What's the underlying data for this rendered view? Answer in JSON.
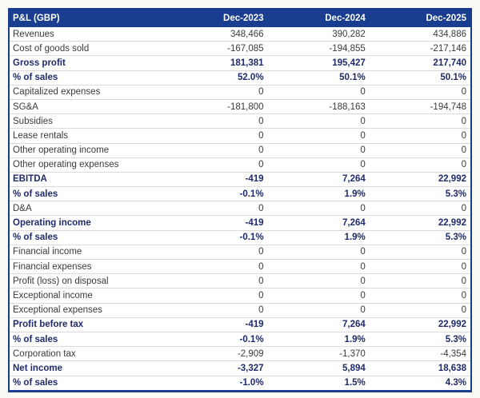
{
  "colors": {
    "header_background": "#1A3E8F",
    "table_border": "#1A3E8F",
    "bold_row_text": "#1F2A6B",
    "regular_row_text": "#3A3A3A",
    "row_separator": "#DBDBDB",
    "header_text": "#FFFFFF",
    "page_background": "#FAFAF7"
  },
  "table": {
    "header": {
      "label": "P&L (GBP)",
      "columns": [
        "Dec-2023",
        "Dec-2024",
        "Dec-2025"
      ]
    },
    "rows": [
      {
        "label": "Revenues",
        "values": [
          "348,466",
          "390,282",
          "434,886"
        ],
        "bold": false
      },
      {
        "label": "Cost of goods sold",
        "values": [
          "-167,085",
          "-194,855",
          "-217,146"
        ],
        "bold": false
      },
      {
        "label": "Gross profit",
        "values": [
          "181,381",
          "195,427",
          "217,740"
        ],
        "bold": true
      },
      {
        "label": "% of sales",
        "values": [
          "52.0%",
          "50.1%",
          "50.1%"
        ],
        "bold": true
      },
      {
        "label": "Capitalized expenses",
        "values": [
          "0",
          "0",
          "0"
        ],
        "bold": false
      },
      {
        "label": "SG&A",
        "values": [
          "-181,800",
          "-188,163",
          "-194,748"
        ],
        "bold": false
      },
      {
        "label": "Subsidies",
        "values": [
          "0",
          "0",
          "0"
        ],
        "bold": false
      },
      {
        "label": "Lease rentals",
        "values": [
          "0",
          "0",
          "0"
        ],
        "bold": false
      },
      {
        "label": "Other operating income",
        "values": [
          "0",
          "0",
          "0"
        ],
        "bold": false
      },
      {
        "label": "Other operating expenses",
        "values": [
          "0",
          "0",
          "0"
        ],
        "bold": false
      },
      {
        "label": "EBITDA",
        "values": [
          "-419",
          "7,264",
          "22,992"
        ],
        "bold": true
      },
      {
        "label": "% of sales",
        "values": [
          "-0.1%",
          "1.9%",
          "5.3%"
        ],
        "bold": true
      },
      {
        "label": "D&A",
        "values": [
          "0",
          "0",
          "0"
        ],
        "bold": false
      },
      {
        "label": "Operating income",
        "values": [
          "-419",
          "7,264",
          "22,992"
        ],
        "bold": true
      },
      {
        "label": "% of sales",
        "values": [
          "-0.1%",
          "1.9%",
          "5.3%"
        ],
        "bold": true
      },
      {
        "label": "Financial income",
        "values": [
          "0",
          "0",
          "0"
        ],
        "bold": false
      },
      {
        "label": "Financial expenses",
        "values": [
          "0",
          "0",
          "0"
        ],
        "bold": false
      },
      {
        "label": "Profit (loss) on disposal",
        "values": [
          "0",
          "0",
          "0"
        ],
        "bold": false
      },
      {
        "label": "Exceptional income",
        "values": [
          "0",
          "0",
          "0"
        ],
        "bold": false
      },
      {
        "label": "Exceptional expenses",
        "values": [
          "0",
          "0",
          "0"
        ],
        "bold": false
      },
      {
        "label": "Profit before tax",
        "values": [
          "-419",
          "7,264",
          "22,992"
        ],
        "bold": true
      },
      {
        "label": "% of sales",
        "values": [
          "-0.1%",
          "1.9%",
          "5.3%"
        ],
        "bold": true
      },
      {
        "label": "Corporation tax",
        "values": [
          "-2,909",
          "-1,370",
          "-4,354"
        ],
        "bold": false
      },
      {
        "label": "Net income",
        "values": [
          "-3,327",
          "5,894",
          "18,638"
        ],
        "bold": true
      },
      {
        "label": "% of sales",
        "values": [
          "-1.0%",
          "1.5%",
          "4.3%"
        ],
        "bold": true
      }
    ]
  },
  "chart_data": {
    "type": "table",
    "title": "P&L (GBP)",
    "columns": [
      "Dec-2023",
      "Dec-2024",
      "Dec-2025"
    ],
    "rows": [
      {
        "label": "Revenues",
        "values": [
          348466,
          390282,
          434886
        ]
      },
      {
        "label": "Cost of goods sold",
        "values": [
          -167085,
          -194855,
          -217146
        ]
      },
      {
        "label": "Gross profit",
        "values": [
          181381,
          195427,
          217740
        ]
      },
      {
        "label": "% of sales",
        "values": [
          52.0,
          50.1,
          50.1
        ],
        "unit": "%"
      },
      {
        "label": "Capitalized expenses",
        "values": [
          0,
          0,
          0
        ]
      },
      {
        "label": "SG&A",
        "values": [
          -181800,
          -188163,
          -194748
        ]
      },
      {
        "label": "Subsidies",
        "values": [
          0,
          0,
          0
        ]
      },
      {
        "label": "Lease rentals",
        "values": [
          0,
          0,
          0
        ]
      },
      {
        "label": "Other operating income",
        "values": [
          0,
          0,
          0
        ]
      },
      {
        "label": "Other operating expenses",
        "values": [
          0,
          0,
          0
        ]
      },
      {
        "label": "EBITDA",
        "values": [
          -419,
          7264,
          22992
        ]
      },
      {
        "label": "% of sales",
        "values": [
          -0.1,
          1.9,
          5.3
        ],
        "unit": "%"
      },
      {
        "label": "D&A",
        "values": [
          0,
          0,
          0
        ]
      },
      {
        "label": "Operating income",
        "values": [
          -419,
          7264,
          22992
        ]
      },
      {
        "label": "% of sales",
        "values": [
          -0.1,
          1.9,
          5.3
        ],
        "unit": "%"
      },
      {
        "label": "Financial income",
        "values": [
          0,
          0,
          0
        ]
      },
      {
        "label": "Financial expenses",
        "values": [
          0,
          0,
          0
        ]
      },
      {
        "label": "Profit (loss) on disposal",
        "values": [
          0,
          0,
          0
        ]
      },
      {
        "label": "Exceptional income",
        "values": [
          0,
          0,
          0
        ]
      },
      {
        "label": "Exceptional expenses",
        "values": [
          0,
          0,
          0
        ]
      },
      {
        "label": "Profit before tax",
        "values": [
          -419,
          7264,
          22992
        ]
      },
      {
        "label": "% of sales",
        "values": [
          -0.1,
          1.9,
          5.3
        ],
        "unit": "%"
      },
      {
        "label": "Corporation tax",
        "values": [
          -2909,
          -1370,
          -4354
        ]
      },
      {
        "label": "Net income",
        "values": [
          -3327,
          5894,
          18638
        ]
      },
      {
        "label": "% of sales",
        "values": [
          -1.0,
          1.5,
          4.3
        ],
        "unit": "%"
      }
    ]
  }
}
